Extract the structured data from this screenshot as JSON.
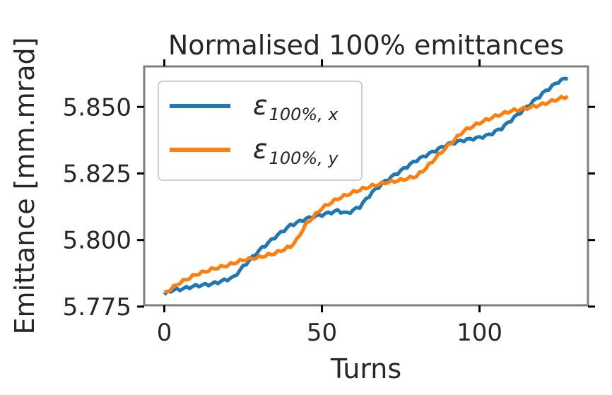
{
  "chart_data": {
    "type": "line",
    "title": "Normalised 100% emittances",
    "xlabel": "Turns",
    "ylabel": "Emittance [mm.mrad]",
    "xlim": [
      -6.4,
      134.4
    ],
    "ylim": [
      5.7755,
      5.8652
    ],
    "xticks": [
      0,
      50,
      100
    ],
    "xtick_labels": [
      "0",
      "50",
      "100"
    ],
    "yticks": [
      5.775,
      5.8,
      5.825,
      5.85
    ],
    "ytick_labels": [
      "5.775",
      "5.800",
      "5.825",
      "5.850"
    ],
    "grid": false,
    "legend": "top-left",
    "series": [
      {
        "name": "ε100%, x",
        "legend_base": "ε",
        "legend_sub": "100%, x",
        "color": "#1f77b4",
        "anchors": [
          [
            0,
            5.7795
          ],
          [
            2,
            5.781
          ],
          [
            5,
            5.7815
          ],
          [
            10,
            5.7828
          ],
          [
            15,
            5.7835
          ],
          [
            18,
            5.7845
          ],
          [
            22,
            5.786
          ],
          [
            25,
            5.79
          ],
          [
            30,
            5.796
          ],
          [
            35,
            5.801
          ],
          [
            40,
            5.8055
          ],
          [
            45,
            5.808
          ],
          [
            50,
            5.8095
          ],
          [
            55,
            5.811
          ],
          [
            58,
            5.81
          ],
          [
            62,
            5.8125
          ],
          [
            66,
            5.818
          ],
          [
            70,
            5.822
          ],
          [
            75,
            5.826
          ],
          [
            80,
            5.83
          ],
          [
            85,
            5.833
          ],
          [
            90,
            5.836
          ],
          [
            95,
            5.8375
          ],
          [
            100,
            5.8385
          ],
          [
            103,
            5.8395
          ],
          [
            107,
            5.842
          ],
          [
            112,
            5.847
          ],
          [
            117,
            5.852
          ],
          [
            121,
            5.856
          ],
          [
            125,
            5.8595
          ],
          [
            128,
            5.861
          ]
        ]
      },
      {
        "name": "ε100%, y",
        "legend_base": "ε",
        "legend_sub": "100%, y",
        "color": "#ff7f0e",
        "anchors": [
          [
            0,
            5.78
          ],
          [
            5,
            5.784
          ],
          [
            10,
            5.787
          ],
          [
            15,
            5.789
          ],
          [
            20,
            5.7905
          ],
          [
            25,
            5.7925
          ],
          [
            30,
            5.7935
          ],
          [
            35,
            5.795
          ],
          [
            40,
            5.7975
          ],
          [
            42,
            5.8
          ],
          [
            45,
            5.806
          ],
          [
            50,
            5.812
          ],
          [
            55,
            5.8155
          ],
          [
            60,
            5.818
          ],
          [
            65,
            5.82
          ],
          [
            70,
            5.8215
          ],
          [
            75,
            5.8225
          ],
          [
            80,
            5.824
          ],
          [
            83,
            5.827
          ],
          [
            87,
            5.832
          ],
          [
            91,
            5.8365
          ],
          [
            95,
            5.841
          ],
          [
            100,
            5.844
          ],
          [
            105,
            5.8465
          ],
          [
            110,
            5.8485
          ],
          [
            115,
            5.8495
          ],
          [
            120,
            5.851
          ],
          [
            125,
            5.853
          ],
          [
            128,
            5.854
          ]
        ]
      }
    ]
  }
}
